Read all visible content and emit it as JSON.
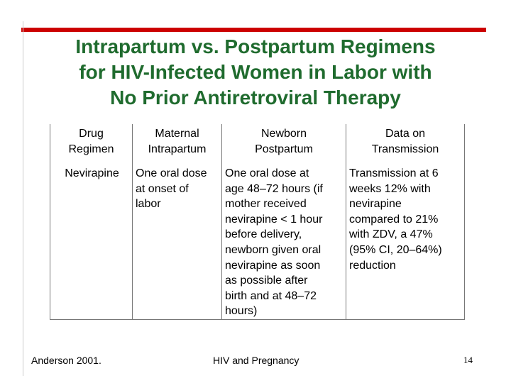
{
  "slide": {
    "title_lines": [
      "Intrapartum vs. Postpartum Regimens",
      "for HIV-Infected Women in Labor with",
      "No Prior Antiretroviral Therapy"
    ],
    "colors": {
      "title": "#1f6b2e",
      "rule": "#cc0000"
    }
  },
  "table": {
    "headers": [
      [
        "Drug",
        "Regimen"
      ],
      [
        "Maternal",
        "Intrapartum"
      ],
      [
        "Newborn",
        "Postpartum"
      ],
      [
        "Data on",
        "Transmission"
      ]
    ],
    "row": {
      "drug": "Nevirapine",
      "maternal": [
        "One oral dose",
        "at onset of",
        "labor"
      ],
      "newborn": [
        "One oral dose at",
        "age 48–72 hours (if",
        "mother received",
        "nevirapine < 1 hour",
        "before delivery,",
        "newborn given oral",
        "nevirapine as soon",
        "as possible after",
        "birth and at 48–72",
        "hours)"
      ],
      "transmission": [
        "Transmission at 6",
        "weeks 12% with",
        "nevirapine",
        "compared to 21%",
        "with ZDV, a 47%",
        "(95% CI, 20–64%)",
        "reduction"
      ]
    }
  },
  "footer": {
    "citation": "Anderson 2001.",
    "center_text": "HIV and Pregnancy",
    "page_number": "14"
  }
}
